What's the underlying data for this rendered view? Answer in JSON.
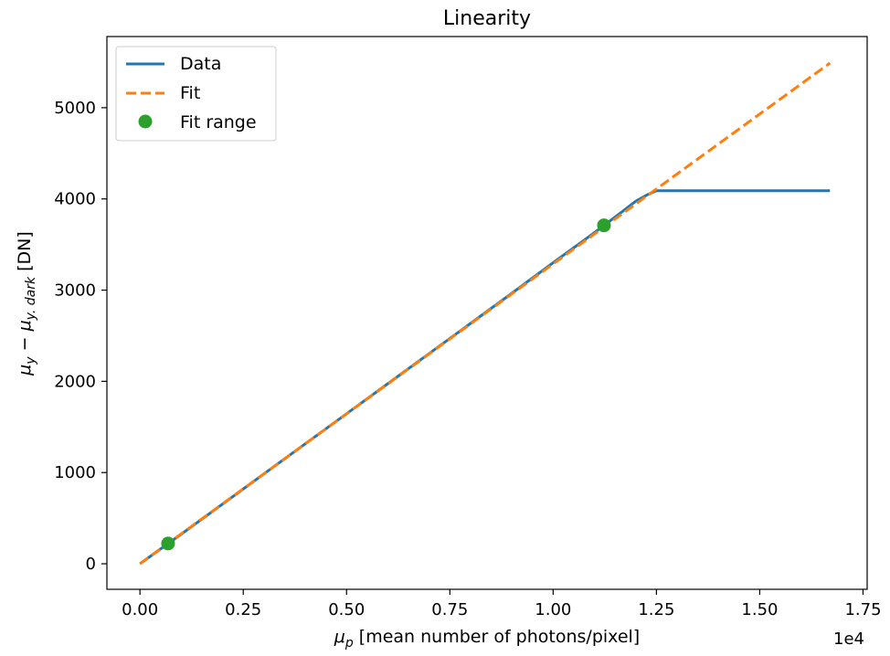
{
  "chart_data": {
    "type": "line",
    "title": "Linearity",
    "xlabel_symbol": "μ",
    "xlabel_sub": "p",
    "xlabel_rest": " [mean number of photons/pixel]",
    "ylabel_sym1": "μ",
    "ylabel_sub1": "y",
    "ylabel_mid": " − μ",
    "ylabel_sub2": "y. dark",
    "ylabel_rest": " [DN]",
    "x_offset_label": "1e4",
    "xlim": [
      -0.08,
      1.76
    ],
    "ylim": [
      -280,
      5780
    ],
    "xticks": [
      0.0,
      0.25,
      0.5,
      0.75,
      1.0,
      1.25,
      1.5,
      1.75
    ],
    "xtick_labels": [
      "0.00",
      "0.25",
      "0.50",
      "0.75",
      "1.00",
      "1.25",
      "1.50",
      "1.75"
    ],
    "yticks": [
      0,
      1000,
      2000,
      3000,
      4000,
      5000
    ],
    "ytick_labels": [
      "0",
      "1000",
      "2000",
      "3000",
      "4000",
      "5000"
    ],
    "legend_position": "top-left",
    "series": [
      {
        "name": "Data",
        "style": "solid",
        "color": "#1f77b4",
        "x": [
          0.0,
          0.1,
          0.2,
          0.3,
          0.4,
          0.5,
          0.6,
          0.7,
          0.8,
          0.9,
          1.0,
          1.1,
          1.17,
          1.2,
          1.23,
          1.25,
          1.3,
          1.4,
          1.5,
          1.6,
          1.67
        ],
        "y": [
          0,
          325,
          655,
          985,
          1315,
          1645,
          1975,
          2305,
          2635,
          2965,
          3300,
          3630,
          3870,
          3975,
          4050,
          4090,
          4090,
          4090,
          4090,
          4090,
          4090
        ]
      },
      {
        "name": "Fit",
        "style": "dashed",
        "color": "#ff7f0e",
        "x": [
          0.0,
          1.67
        ],
        "y": [
          0,
          5490
        ]
      },
      {
        "name": "Fit range",
        "style": "marker",
        "color": "#2ca02c",
        "x": [
          0.068,
          1.123
        ],
        "y": [
          222,
          3710
        ]
      }
    ]
  }
}
